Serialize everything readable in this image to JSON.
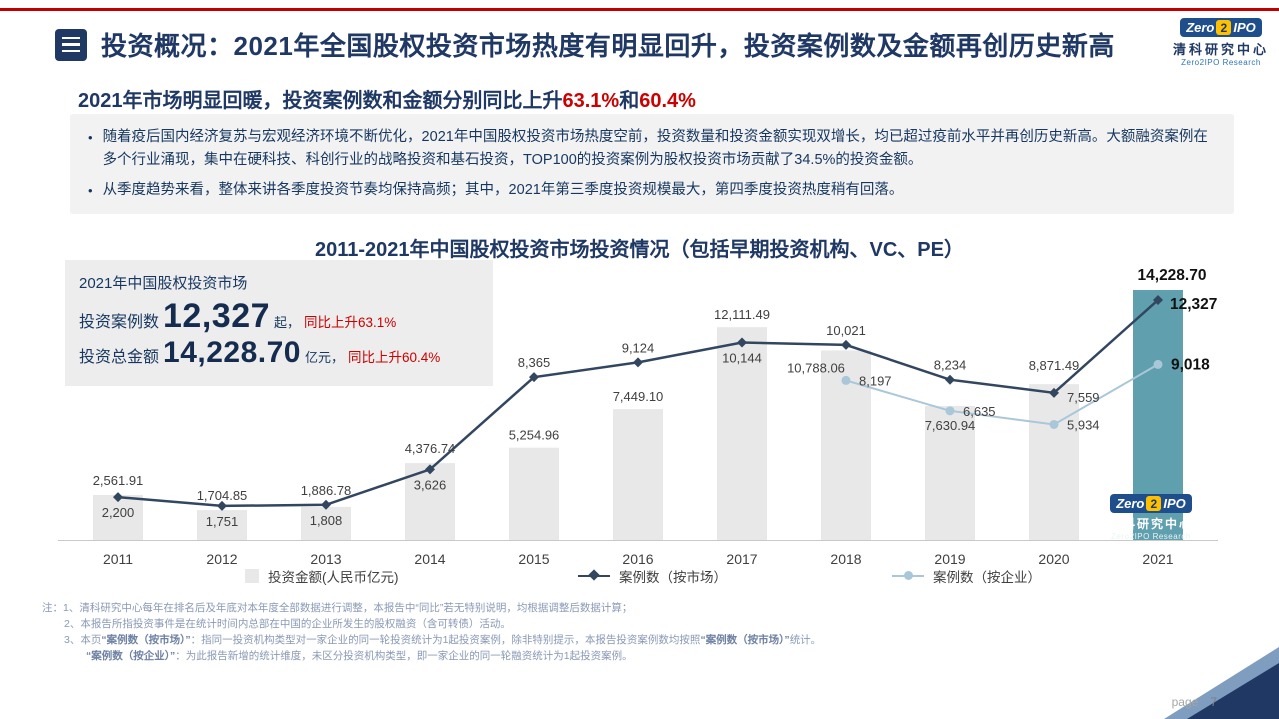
{
  "header": {
    "title": "投资概况：2021年全国股权投资市场热度有明显回升，投资案例数及金额再创历史新高"
  },
  "logo": {
    "zero": "Zero",
    "two": "2",
    "ipo": "IPO",
    "cn": "清科研究中心",
    "en": "Zero2IPO Research"
  },
  "summary": {
    "lead": "2021年市场明显回暖，投资案例数和金额分别同比上升",
    "pct_cases": "63.1%",
    "conj": "和",
    "pct_amount": "60.4%",
    "bullet_marker": "•",
    "bullets": [
      "随着疫后国内经济复苏与宏观经济环境不断优化，2021年中国股权投资市场热度空前，投资数量和投资金额实现双增长，均已超过疫前水平并再创历史新高。大额融资案例在多个行业涌现，集中在硬科技、科创行业的战略投资和基石投资，TOP100的投资案例为股权投资市场贡献了34.5%的投资金额。",
      "从季度趋势来看，整体来讲各季度投资节奏均保持高频；其中，2021年第三季度投资规模最大，第四季度投资热度稍有回落。"
    ]
  },
  "infobox": {
    "title": "2021年中国股权投资市场",
    "cases_label": "投资案例数",
    "cases_value": "12,327",
    "cases_unit": "起，",
    "cases_yoy": "同比上升63.1%",
    "amount_label": "投资总金额",
    "amount_value": "14,228.70",
    "amount_unit": "亿元，",
    "amount_yoy": "同比上升60.4%"
  },
  "chart": {
    "title": "2011-2021年中国股权投资市场投资情况（包括早期投资机构、VC、PE）"
  },
  "chart_data": {
    "type": "bar",
    "subtype": "combo-bar-line",
    "categories": [
      "2011",
      "2012",
      "2013",
      "2014",
      "2015",
      "2016",
      "2017",
      "2018",
      "2019",
      "2020",
      "2021"
    ],
    "series": [
      {
        "name": "投资金额(人民币亿元)",
        "type": "bar",
        "values": [
          2561.91,
          1704.85,
          1886.78,
          4376.74,
          5254.96,
          7449.1,
          12111.49,
          10788.06,
          7630.94,
          8871.49,
          14228.7
        ],
        "labels": [
          "2,561.91",
          "1,704.85",
          "1,886.78",
          "4,376.74",
          "5,254.96",
          "7,449.10",
          "12,111.49",
          "10,788.06",
          "7,630.94",
          "8,871.49",
          "14,228.70"
        ]
      },
      {
        "name": "案例数（按市场）",
        "type": "line",
        "values": [
          2200,
          1751,
          1808,
          3626,
          8365,
          9124,
          10144,
          10021,
          8234,
          7559,
          12327
        ],
        "labels": [
          "2,200",
          "1,751",
          "1,808",
          "3,626",
          "8,365",
          "9,124",
          "10,144",
          "10,021",
          "8,234",
          "7,559",
          "12,327"
        ]
      },
      {
        "name": "案例数（按企业）",
        "type": "line",
        "values": [
          null,
          null,
          null,
          null,
          null,
          null,
          null,
          8197,
          6635,
          5934,
          9018
        ],
        "labels": [
          null,
          null,
          null,
          null,
          null,
          null,
          null,
          "8,197",
          "6,635",
          "5,934",
          "9,018"
        ]
      }
    ],
    "highlight_category": "2021",
    "colors": {
      "bar": "#e8e8e8",
      "bar_highlight": "#5f9fae",
      "line_market": "#32465f",
      "line_company": "#a9c7d8",
      "label": "#404040",
      "label_highlight": "#111111",
      "axis": "#c9c9c9",
      "tick": "#404040"
    },
    "legend_position": "bottom",
    "grid": false,
    "xlabel": "",
    "ylabel": ""
  },
  "notes": [
    "注：1、清科研究中心每年在排名后及年底对本年度全部数据进行调整，本报告中“同比”若无特别说明，均根据调整后数据计算；",
    "2、本报告所指投资事件是在统计时间内总部在中国的企业所发生的股权融资（含可转债）活动。",
    "3、本页“案例数（按市场）”：指同一投资机构类型对一家企业的同一轮投资统计为1起投资案例，除非特别提示，本报告投资案例数均按照“案例数（按市场）”统计。",
    "“案例数（按企业）”：为此报告新增的统计维度，未区分投资机构类型，即一家企业的同一轮融资统计为1起投资案例。"
  ],
  "notes_bold_terms": [
    "“案例数（按市场）”",
    "“案例数（按企业）”"
  ],
  "footer": {
    "page_label": "page",
    "page_number": "7"
  }
}
